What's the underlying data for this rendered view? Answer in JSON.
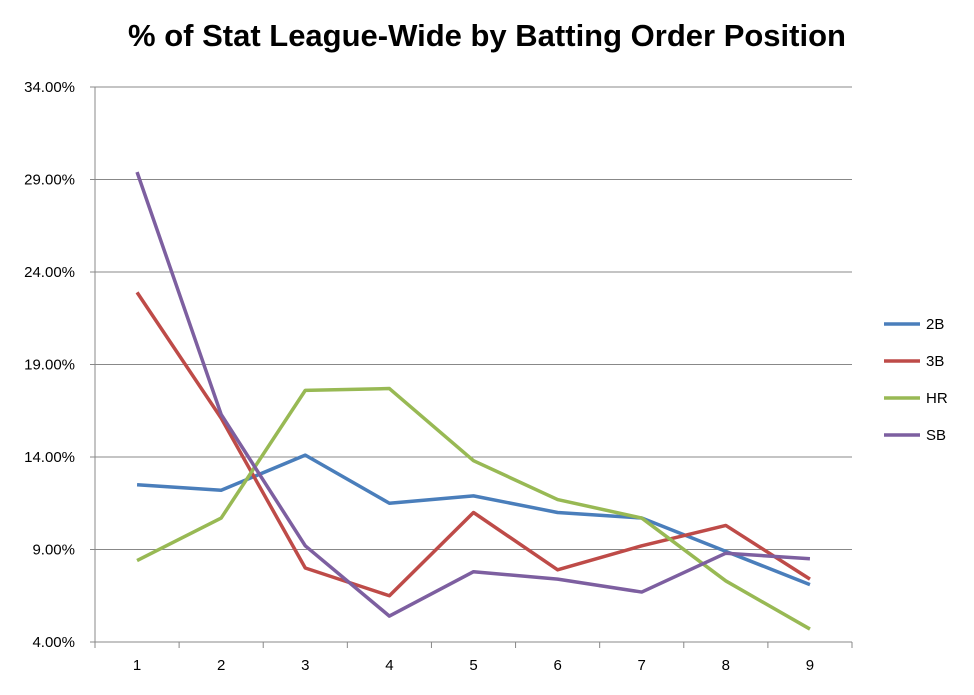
{
  "chart_data": {
    "type": "line",
    "title": "% of Stat League-Wide by Batting Order Position",
    "xlabel": "",
    "ylabel": "",
    "x": [
      1,
      2,
      3,
      4,
      5,
      6,
      7,
      8,
      9
    ],
    "ylim": [
      4,
      34
    ],
    "yticks": [
      "4.00%",
      "9.00%",
      "14.00%",
      "19.00%",
      "24.00%",
      "29.00%",
      "34.00%"
    ],
    "grid": "horizontal",
    "legend": "right",
    "series": [
      {
        "name": "2B",
        "color": "#4a7ebb",
        "values": [
          12.5,
          12.2,
          14.1,
          11.5,
          11.9,
          11.0,
          10.7,
          8.9,
          7.1
        ]
      },
      {
        "name": "3B",
        "color": "#be4b48",
        "values": [
          22.9,
          16.1,
          8.0,
          6.5,
          11.0,
          7.9,
          9.2,
          10.3,
          7.4
        ]
      },
      {
        "name": "HR",
        "color": "#98b954",
        "values": [
          8.4,
          10.7,
          17.6,
          17.7,
          13.8,
          11.7,
          10.7,
          7.3,
          4.7
        ]
      },
      {
        "name": "SB",
        "color": "#7d5fa0",
        "values": [
          29.4,
          16.3,
          9.2,
          5.4,
          7.8,
          7.4,
          6.7,
          8.8,
          8.5
        ]
      }
    ]
  }
}
